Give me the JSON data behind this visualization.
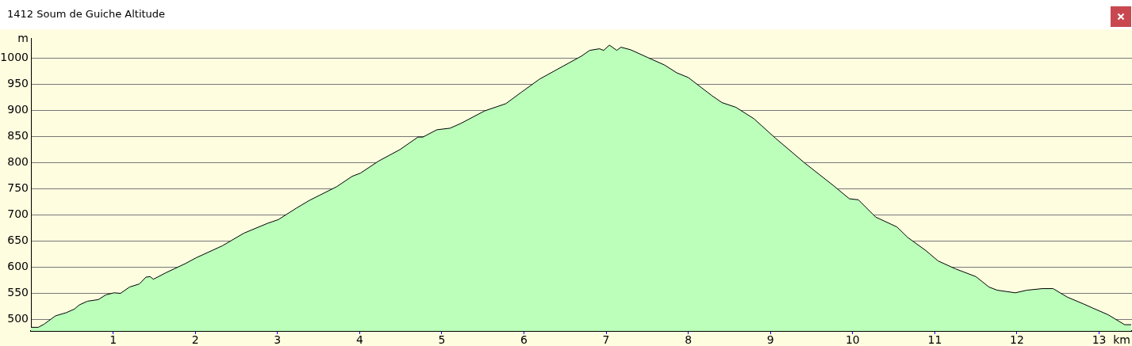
{
  "chart_data": {
    "type": "area",
    "title": "1412 Soum de Guiche Altitude",
    "xlabel": "km",
    "ylabel": "m",
    "grid": "y",
    "line_style": "solid",
    "marker": "none",
    "xlim": [
      0,
      13.4
    ],
    "xticks": [
      1,
      2,
      3,
      4,
      5,
      6,
      7,
      8,
      9,
      10,
      11,
      12,
      13
    ],
    "ylim": [
      478,
      1038
    ],
    "yticks": [
      500,
      550,
      600,
      650,
      700,
      750,
      800,
      850,
      900,
      950,
      1000
    ],
    "x": [
      0,
      0.09,
      0.16,
      0.3,
      0.43,
      0.53,
      0.59,
      0.69,
      0.82,
      0.91,
      1.01,
      1.09,
      1.2,
      1.32,
      1.4,
      1.45,
      1.49,
      1.65,
      1.88,
      2.01,
      2.33,
      2.59,
      2.88,
      3.01,
      3.23,
      3.39,
      3.72,
      3.91,
      4.01,
      4.23,
      4.49,
      4.71,
      4.77,
      4.94,
      5.1,
      5.23,
      5.52,
      5.78,
      5.97,
      6.19,
      6.41,
      6.7,
      6.8,
      6.92,
      6.97,
      7.04,
      7.13,
      7.18,
      7.3,
      7.51,
      7.71,
      7.86,
      8,
      8.29,
      8.41,
      8.58,
      8.8,
      9.06,
      9.42,
      9.76,
      9.96,
      10.07,
      10.28,
      10.54,
      10.67,
      10.89,
      11.04,
      11.25,
      11.5,
      11.66,
      11.76,
      11.98,
      12.12,
      12.31,
      12.44,
      12.61,
      12.82,
      12.92,
      13.11,
      13.31,
      13.39
    ],
    "series": [
      {
        "color": "#bbffbb",
        "values": [
          485,
          485,
          491,
          507,
          513,
          520,
          528,
          535,
          538,
          547,
          551,
          550,
          562,
          568,
          581,
          582,
          577,
          590,
          607,
          618,
          641,
          665,
          684,
          691,
          713,
          728,
          754,
          774,
          780,
          803,
          825,
          849,
          849,
          863,
          866,
          875,
          899,
          913,
          935,
          960,
          979,
          1004,
          1015,
          1018,
          1015,
          1025,
          1015,
          1021,
          1016,
          1001,
          987,
          972,
          963,
          928,
          915,
          906,
          884,
          847,
          799,
          757,
          731,
          729,
          696,
          677,
          657,
          632,
          612,
          597,
          582,
          562,
          556,
          551,
          556,
          559,
          559,
          543,
          529,
          522,
          509,
          490,
          490
        ]
      }
    ]
  }
}
